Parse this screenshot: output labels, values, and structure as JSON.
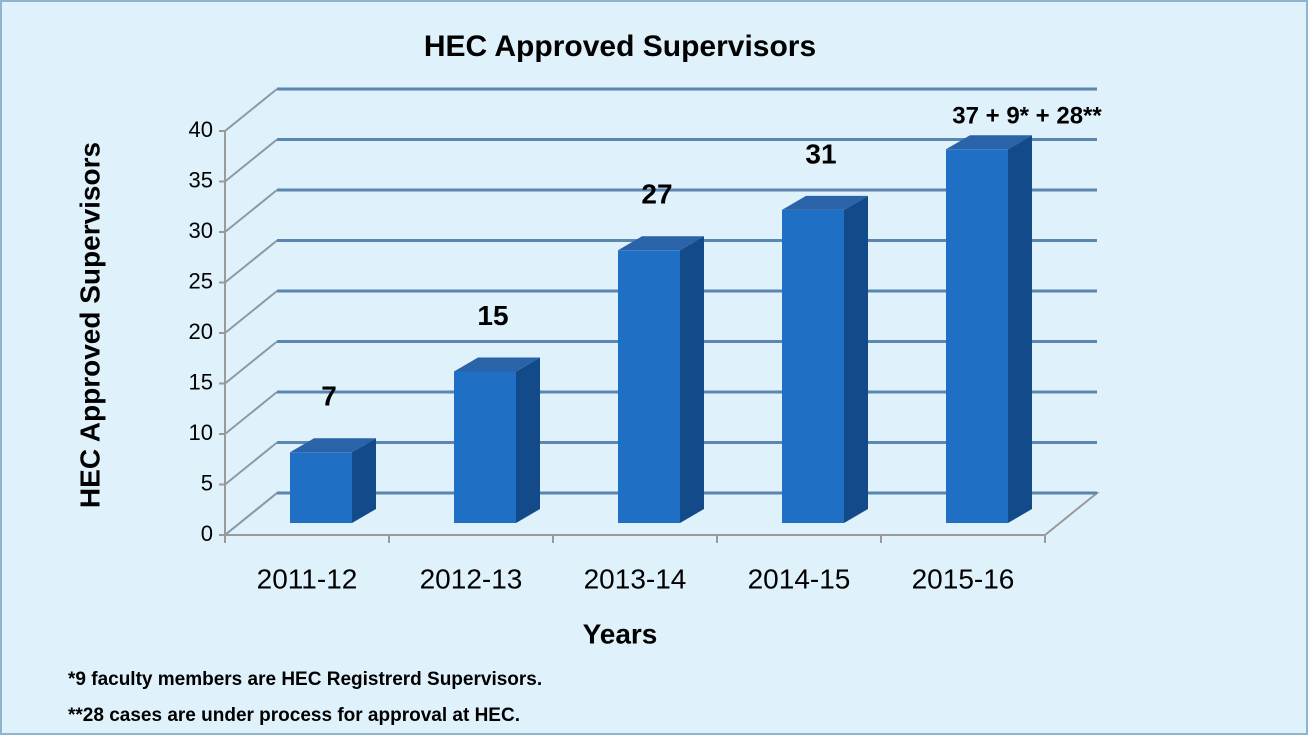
{
  "chart_data": {
    "type": "bar3d",
    "title": "HEC Approved Supervisors",
    "xlabel": "Years",
    "ylabel": "HEC Approved Supervisors",
    "categories": [
      "2011-12",
      "2012-13",
      "2013-14",
      "2014-15",
      "2015-16"
    ],
    "values": [
      7,
      15,
      27,
      31,
      37
    ],
    "value_labels": [
      "7",
      "15",
      "27",
      "31",
      "37 + 9* + 28**"
    ],
    "color": "#1f6fc5",
    "ylim": [
      0,
      40
    ],
    "yticks": [
      0,
      5,
      10,
      15,
      20,
      25,
      30,
      35,
      40
    ],
    "grid": true,
    "notes": [
      "*9 faculty members are HEC Registrerd Supervisors.",
      "**28 cases are under process for approval at HEC."
    ]
  }
}
